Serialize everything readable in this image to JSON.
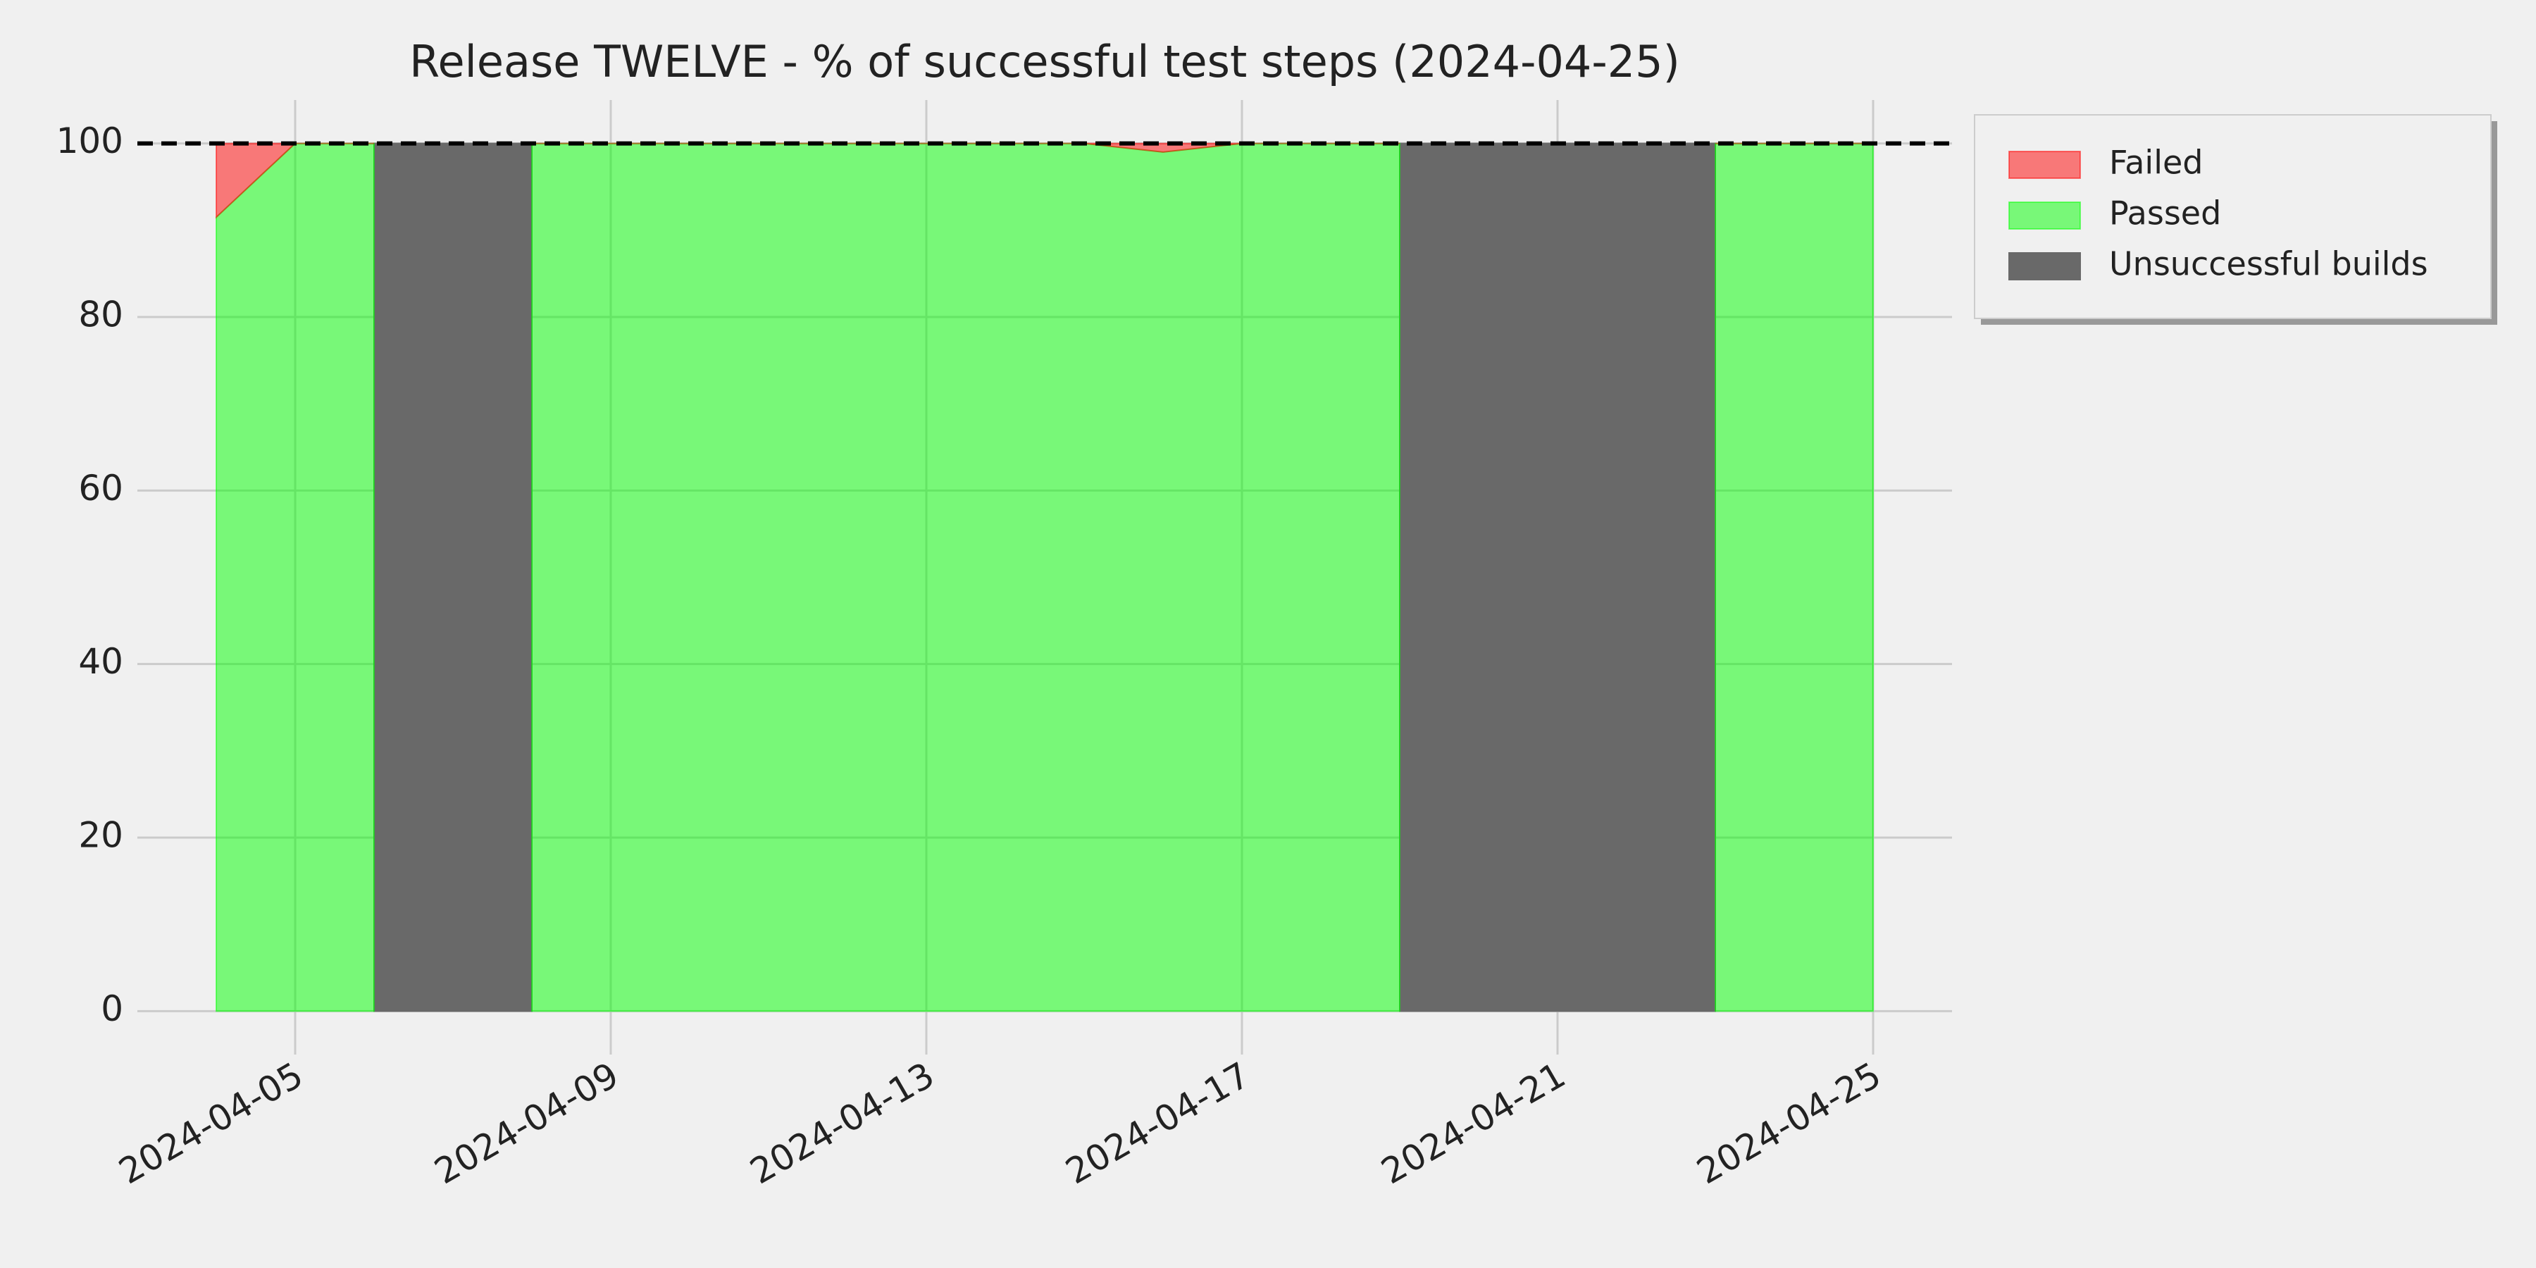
{
  "chart_data": {
    "type": "stacked-area",
    "title": "Release TWELVE - % of successful test steps (2024-04-25)",
    "x": [
      "2024-04-04",
      "2024-04-05",
      "2024-04-06",
      "2024-04-07",
      "2024-04-08",
      "2024-04-09",
      "2024-04-10",
      "2024-04-11",
      "2024-04-12",
      "2024-04-13",
      "2024-04-14",
      "2024-04-15",
      "2024-04-16",
      "2024-04-17",
      "2024-04-18",
      "2024-04-19",
      "2024-04-20",
      "2024-04-21",
      "2024-04-22",
      "2024-04-23",
      "2024-04-24",
      "2024-04-25"
    ],
    "series": [
      {
        "name": "Failed",
        "color": "#ff0000",
        "stack": true,
        "values": [
          8.5,
          0,
          0,
          null,
          0,
          0,
          0,
          0,
          0,
          0,
          0,
          0,
          1,
          0,
          0,
          0,
          null,
          null,
          null,
          0,
          0,
          0
        ]
      },
      {
        "name": "Passed",
        "color": "#00ff00",
        "values": [
          91.5,
          100,
          100,
          null,
          100,
          100,
          100,
          100,
          100,
          100,
          100,
          100,
          99,
          100,
          100,
          100,
          null,
          null,
          null,
          100,
          100,
          100
        ]
      },
      {
        "name": "Unsuccessful builds",
        "color": "#696969",
        "opaque": true,
        "values": [
          null,
          null,
          100,
          100,
          100,
          null,
          null,
          null,
          null,
          null,
          null,
          null,
          null,
          null,
          null,
          100,
          100,
          100,
          100,
          100,
          null,
          null
        ]
      }
    ],
    "alpha": 0.5,
    "target_line": 100,
    "xlim": [
      "2024-04-03",
      "2024-04-26"
    ],
    "xticks": [
      "2024-04-05",
      "2024-04-09",
      "2024-04-13",
      "2024-04-17",
      "2024-04-21",
      "2024-04-25"
    ],
    "ylim": [
      -5,
      105
    ],
    "yticks": [
      0,
      20,
      40,
      60,
      80,
      100
    ],
    "grid": true,
    "legend": "outside-upper-right"
  }
}
